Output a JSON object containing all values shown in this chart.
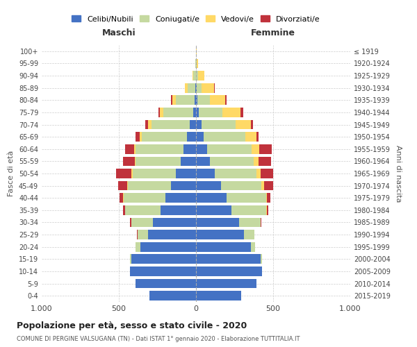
{
  "age_groups": [
    "0-4",
    "5-9",
    "10-14",
    "15-19",
    "20-24",
    "25-29",
    "30-34",
    "35-39",
    "40-44",
    "45-49",
    "50-54",
    "55-59",
    "60-64",
    "65-69",
    "70-74",
    "75-79",
    "80-84",
    "85-89",
    "90-94",
    "95-99",
    "100+"
  ],
  "birth_years": [
    "2015-2019",
    "2010-2014",
    "2005-2009",
    "2000-2004",
    "1995-1999",
    "1990-1994",
    "1985-1989",
    "1980-1984",
    "1975-1979",
    "1970-1974",
    "1965-1969",
    "1960-1964",
    "1955-1959",
    "1950-1954",
    "1945-1949",
    "1940-1944",
    "1935-1939",
    "1930-1934",
    "1925-1929",
    "1920-1924",
    "≤ 1919"
  ],
  "male": {
    "celibi": [
      300,
      390,
      430,
      420,
      360,
      310,
      280,
      230,
      200,
      160,
      130,
      100,
      80,
      60,
      40,
      20,
      10,
      5,
      2,
      0,
      0
    ],
    "coniugati": [
      0,
      0,
      0,
      10,
      30,
      70,
      140,
      230,
      270,
      280,
      280,
      290,
      310,
      290,
      250,
      190,
      120,
      50,
      15,
      3,
      1
    ],
    "vedovi": [
      0,
      0,
      0,
      0,
      0,
      0,
      0,
      0,
      5,
      5,
      10,
      5,
      10,
      15,
      20,
      25,
      25,
      15,
      5,
      2,
      0
    ],
    "divorziati": [
      0,
      0,
      0,
      0,
      0,
      5,
      10,
      15,
      20,
      60,
      100,
      80,
      60,
      25,
      20,
      10,
      5,
      0,
      0,
      0,
      0
    ]
  },
  "female": {
    "nubili": [
      295,
      390,
      430,
      420,
      355,
      310,
      280,
      230,
      200,
      160,
      120,
      90,
      70,
      50,
      35,
      20,
      10,
      5,
      2,
      0,
      0
    ],
    "coniugate": [
      0,
      0,
      0,
      10,
      30,
      70,
      140,
      225,
      255,
      265,
      270,
      285,
      290,
      270,
      220,
      150,
      80,
      30,
      10,
      3,
      1
    ],
    "vedove": [
      0,
      0,
      0,
      0,
      0,
      0,
      0,
      5,
      5,
      15,
      30,
      30,
      50,
      70,
      100,
      120,
      100,
      80,
      40,
      10,
      2
    ],
    "divorziate": [
      0,
      0,
      0,
      0,
      0,
      0,
      5,
      10,
      20,
      60,
      80,
      80,
      80,
      15,
      15,
      15,
      10,
      5,
      0,
      0,
      0
    ]
  },
  "colors": {
    "celibi_nubili": "#4472C4",
    "coniugati": "#C5D9A0",
    "vedovi": "#FFD966",
    "divorziati": "#C0323C"
  },
  "xlim": 1000,
  "title": "Popolazione per età, sesso e stato civile - 2020",
  "subtitle": "COMUNE DI PERGINE VALSUGANA (TN) - Dati ISTAT 1° gennaio 2020 - Elaborazione TUTTITALIA.IT",
  "xlabel_left": "Maschi",
  "xlabel_right": "Femmine",
  "ylabel_left": "Fasce di età",
  "ylabel_right": "Anni di nascita",
  "background_color": "#ffffff",
  "grid_color": "#cccccc"
}
